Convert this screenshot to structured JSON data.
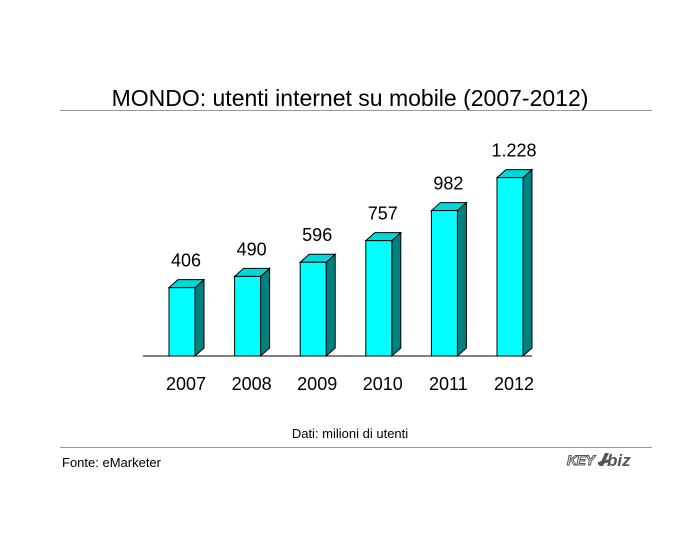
{
  "chart_data": {
    "type": "bar",
    "title": "MONDO: utenti internet su mobile (2007-2012)",
    "categories": [
      "2007",
      "2008",
      "2009",
      "2010",
      "2011",
      "2012"
    ],
    "values": [
      406,
      490,
      596,
      757,
      982,
      1228
    ],
    "value_labels": [
      "406",
      "490",
      "596",
      "757",
      "982",
      "1.228"
    ],
    "ylim": [
      0,
      1300
    ],
    "grid": false,
    "colors": {
      "bar_front": "#00ffff",
      "bar_side": "#008080",
      "bar_top": "#00d8d8",
      "outline": "#000000"
    }
  },
  "note": "Dati: milioni di utenti",
  "source": "Fonte: eMarketer",
  "logo": {
    "main": "KEY",
    "sub": "biz"
  }
}
